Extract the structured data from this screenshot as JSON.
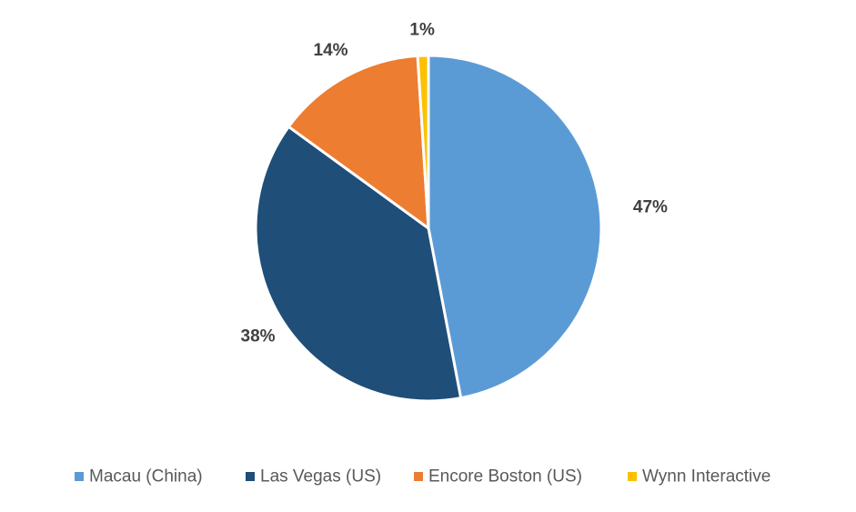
{
  "chart_data": {
    "type": "pie",
    "categories": [
      "Macau (China)",
      "Las Vegas (US)",
      "Encore Boston (US)",
      "Wynn Interactive"
    ],
    "values": [
      47,
      38,
      14,
      1
    ],
    "value_labels": [
      "47%",
      "38%",
      "14%",
      "1%"
    ],
    "colors": [
      "#5b9bd5",
      "#1f4e79",
      "#ed7d31",
      "#ffc000"
    ],
    "legend_position": "bottom",
    "title": ""
  }
}
